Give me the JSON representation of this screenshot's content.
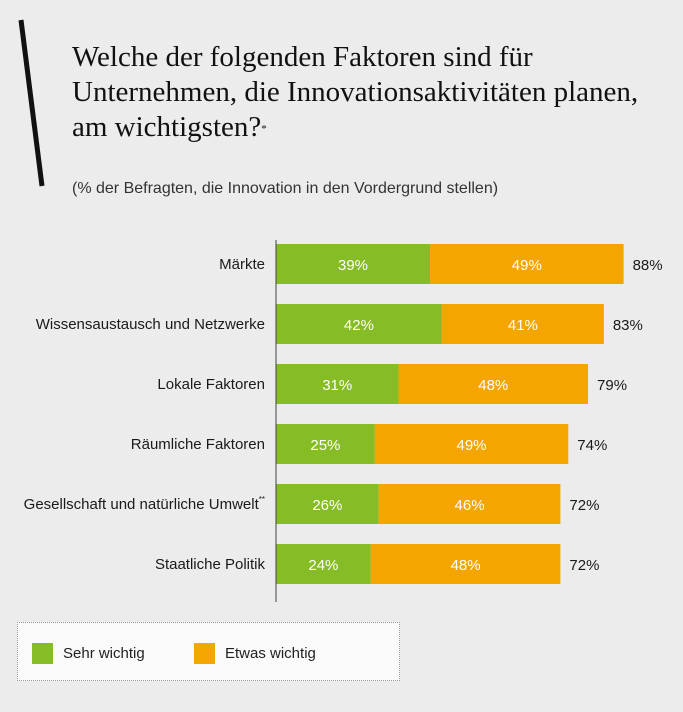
{
  "title": "Welche der folgenden Faktoren sind für Unternehmen, die Innovationsaktivitäten planen, am wichtigsten?",
  "title_footnote": "*",
  "subtitle": "(% der Befragten, die Innovation in den Vordergrund stellen)",
  "colors": {
    "sehr": "#86bc25",
    "etwas": "#f5a500",
    "axis": "#444444",
    "background": "#ececec"
  },
  "legend": [
    {
      "label": "Sehr wichtig",
      "color": "#86bc25"
    },
    {
      "label": "Etwas wichtig",
      "color": "#f5a500"
    }
  ],
  "chart_data": {
    "type": "bar",
    "orientation": "horizontal",
    "stacked": true,
    "title": "Welche der folgenden Faktoren sind für Unternehmen, die Innovationsaktivitäten planen, am wichtigsten?",
    "subtitle": "(% der Befragten, die Innovation in den Vordergrund stellen)",
    "xlabel": "",
    "ylabel": "",
    "xlim": [
      0,
      100
    ],
    "grid": false,
    "legend_position": "bottom-left",
    "categories": [
      "Märkte",
      "Wissensaustausch und Netzwerke",
      "Lokale Faktoren",
      "Räumliche Faktoren",
      "Gesellschaft und natürliche Umwelt",
      "Staatliche Politik"
    ],
    "category_footnotes": [
      "",
      "",
      "",
      "",
      "**",
      ""
    ],
    "series": [
      {
        "name": "Sehr wichtig",
        "color": "#86bc25",
        "values": [
          39,
          42,
          31,
          25,
          26,
          24
        ]
      },
      {
        "name": "Etwas wichtig",
        "color": "#f5a500",
        "values": [
          49,
          41,
          48,
          49,
          46,
          48
        ]
      }
    ],
    "totals": [
      88,
      83,
      79,
      74,
      72,
      72
    ],
    "unit": "%"
  }
}
